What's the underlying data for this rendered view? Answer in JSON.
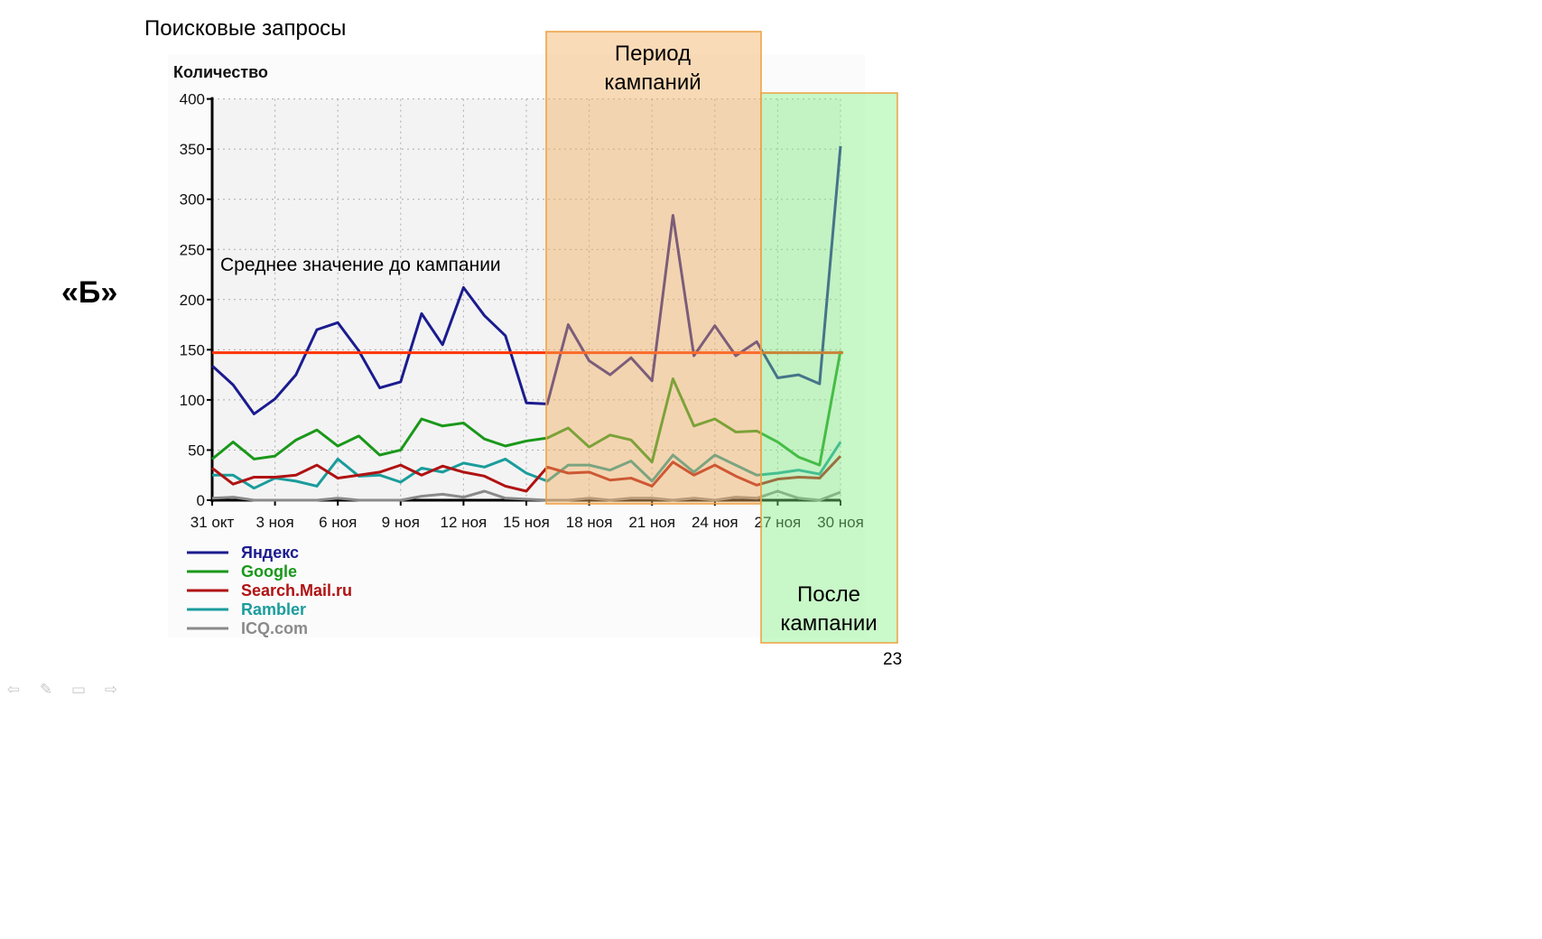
{
  "slide": {
    "title": "Поисковые запросы",
    "variant_label": "«Б»",
    "page_number": "23",
    "nav_icons": [
      "arrow-left-icon",
      "pen-icon",
      "menu-icon",
      "arrow-right-icon"
    ]
  },
  "chart_data": {
    "type": "line",
    "ylabel": "Количество",
    "ylim": [
      0,
      400
    ],
    "yticks": [
      0,
      50,
      100,
      150,
      200,
      250,
      300,
      350,
      400
    ],
    "x_start": "31 окт",
    "xtick_labels": [
      "31 окт",
      "3 ноя",
      "6 ноя",
      "9 ноя",
      "12 ноя",
      "15 ноя",
      "18 ноя",
      "21 ноя",
      "24 ноя",
      "27 ноя",
      "30 ноя"
    ],
    "xtick_day_index": [
      0,
      3,
      6,
      9,
      12,
      15,
      18,
      21,
      24,
      27,
      30
    ],
    "days": 31,
    "grid": true,
    "legend_position": "bottom-left",
    "series": [
      {
        "name": "Яндекс",
        "color": "#1b1b8f",
        "values": [
          134,
          115,
          86,
          101,
          125,
          170,
          177,
          149,
          112,
          118,
          186,
          155,
          212,
          184,
          164,
          97,
          96,
          175,
          139,
          125,
          142,
          119,
          284,
          144,
          174,
          144,
          158,
          122,
          125,
          116,
          353
        ]
      },
      {
        "name": "Google",
        "color": "#1a981a",
        "values": [
          41,
          58,
          41,
          44,
          60,
          70,
          54,
          64,
          45,
          50,
          81,
          74,
          77,
          61,
          54,
          59,
          62,
          72,
          53,
          65,
          60,
          38,
          121,
          74,
          81,
          68,
          69,
          58,
          43,
          35,
          149
        ]
      },
      {
        "name": "Search.Mail.ru",
        "color": "#b01212",
        "values": [
          32,
          16,
          23,
          23,
          25,
          35,
          22,
          25,
          28,
          35,
          25,
          34,
          28,
          24,
          14,
          9,
          33,
          27,
          28,
          20,
          22,
          14,
          38,
          25,
          35,
          24,
          15,
          21,
          23,
          22,
          44
        ]
      },
      {
        "name": "Rambler",
        "color": "#1a9c9c",
        "values": [
          25,
          25,
          12,
          22,
          19,
          14,
          41,
          24,
          25,
          18,
          32,
          28,
          37,
          33,
          41,
          27,
          19,
          35,
          35,
          30,
          39,
          19,
          45,
          28,
          45,
          35,
          25,
          27,
          30,
          26,
          58
        ]
      },
      {
        "name": "ICQ.com",
        "color": "#8a8a8a",
        "values": [
          2,
          3,
          0,
          0,
          0,
          0,
          2,
          0,
          0,
          0,
          4,
          6,
          3,
          9,
          2,
          1,
          0,
          0,
          2,
          0,
          2,
          2,
          0,
          2,
          0,
          3,
          2,
          9,
          2,
          0,
          8
        ]
      }
    ],
    "reference_line": {
      "label": "Среднее значение до кампании",
      "value": 147,
      "color": "#ff3300"
    },
    "periods": [
      {
        "label_line1": "Период",
        "label_line2": "кампаний",
        "color": "#f5b060"
      },
      {
        "label_line1": "После",
        "label_line2": "кампании",
        "color": "#80f080"
      }
    ]
  }
}
